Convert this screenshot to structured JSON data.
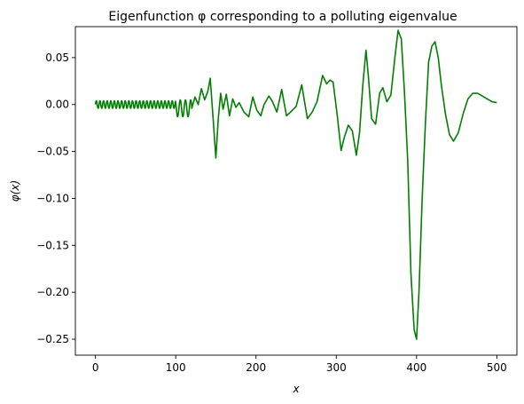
{
  "chart_data": {
    "type": "line",
    "title": "Eigenfunction φ corresponding to a polluting eigenvalue",
    "xlabel": "x",
    "ylabel": "φ(x)",
    "xlim": [
      -25,
      525
    ],
    "ylim": [
      -0.267,
      0.083
    ],
    "x_ticks": [
      0,
      100,
      200,
      300,
      400,
      500
    ],
    "y_ticks": [
      0.05,
      0.0,
      -0.05,
      -0.1,
      -0.15,
      -0.2,
      -0.25
    ],
    "x_tick_labels": [
      "0",
      "100",
      "200",
      "300",
      "400",
      "500"
    ],
    "y_tick_labels": [
      "0.05",
      "0.00",
      "−0.05",
      "−0.10",
      "−0.15",
      "−0.20",
      "−0.25"
    ],
    "grid": false,
    "legend": "none",
    "series": [
      {
        "color": "#008000",
        "segments": [
          {
            "x_range": [
              0,
              100
            ],
            "style": "rapid oscillation",
            "amplitude": 0.004,
            "period": 4.5,
            "offset": 0.0
          },
          {
            "x_range": [
              100,
              120
            ],
            "style": "oscillation",
            "amplitude": 0.009,
            "period": 6.5,
            "offset": -0.004
          }
        ],
        "x": [
          120,
          124,
          128,
          132,
          136,
          140,
          143,
          147,
          150,
          153,
          156,
          159,
          163,
          167,
          171,
          175,
          179,
          185,
          191,
          196,
          201,
          206,
          210,
          216,
          220,
          226,
          232,
          238,
          243,
          250,
          257,
          264,
          270,
          276,
          283,
          288,
          292,
          296,
          301,
          306,
          310,
          315,
          320,
          325,
          329,
          333,
          337,
          340,
          344,
          349,
          354,
          358,
          363,
          368,
          373,
          377,
          381,
          385,
          389,
          393,
          397,
          400,
          403,
          407,
          411,
          415,
          419,
          423,
          427,
          431,
          436,
          441,
          446,
          452,
          458,
          464,
          470,
          476,
          482,
          488,
          494,
          500
        ],
        "y": [
          -0.004,
          0.008,
          0.0,
          0.017,
          0.005,
          0.014,
          0.028,
          -0.02,
          -0.057,
          -0.015,
          0.012,
          -0.005,
          0.011,
          -0.012,
          0.006,
          -0.003,
          0.002,
          -0.008,
          -0.013,
          0.008,
          -0.006,
          -0.012,
          0.0,
          0.009,
          0.004,
          -0.008,
          0.016,
          -0.012,
          -0.008,
          -0.002,
          0.021,
          -0.015,
          -0.008,
          0.003,
          0.031,
          0.022,
          0.026,
          0.024,
          -0.01,
          -0.049,
          -0.035,
          -0.022,
          -0.028,
          -0.054,
          -0.03,
          0.02,
          0.058,
          0.03,
          -0.015,
          -0.021,
          0.012,
          0.018,
          0.003,
          0.01,
          0.05,
          0.079,
          0.07,
          0.012,
          -0.06,
          -0.18,
          -0.24,
          -0.25,
          -0.2,
          -0.1,
          -0.02,
          0.045,
          0.062,
          0.067,
          0.05,
          0.02,
          -0.01,
          -0.032,
          -0.039,
          -0.03,
          -0.01,
          0.006,
          0.012,
          0.012,
          0.009,
          0.006,
          0.003,
          0.002
        ]
      }
    ]
  }
}
